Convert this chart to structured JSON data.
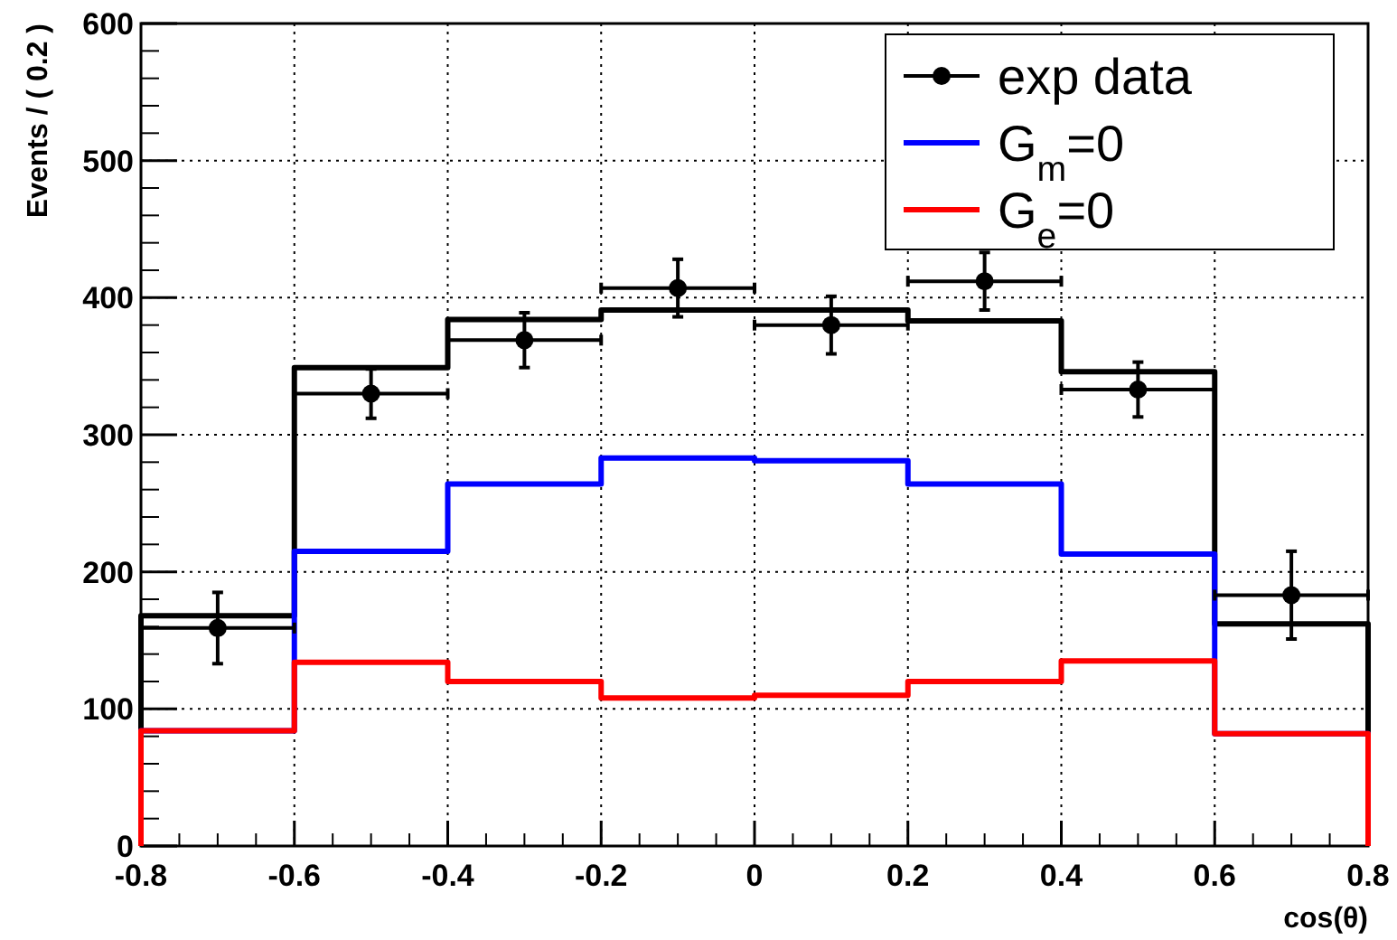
{
  "chart_data": {
    "type": "histogram",
    "xlabel": "cos(θ)",
    "ylabel": "Events / ( 0.2 )",
    "bins": [
      -0.8,
      -0.6,
      -0.4,
      -0.2,
      0,
      0.2,
      0.4,
      0.6,
      0.8
    ],
    "series": [
      {
        "name": "exp data",
        "type": "scatter",
        "color": "#000000",
        "marker": "circle",
        "x": [
          -0.7,
          -0.5,
          -0.3,
          -0.1,
          0.1,
          0.3,
          0.5,
          0.7
        ],
        "values": [
          159,
          330,
          369,
          407,
          380,
          412,
          333,
          183
        ],
        "errors": [
          26,
          18,
          20,
          21,
          21,
          21,
          20,
          32
        ],
        "xerrors": [
          0.1,
          0.1,
          0.1,
          0.1,
          0.1,
          0.1,
          0.1,
          0.1
        ]
      },
      {
        "color": "#000000",
        "values": [
          168,
          349,
          384,
          391,
          391,
          383,
          346,
          162
        ]
      },
      {
        "name": "G$_{m}$=0",
        "color": "#0000ff",
        "values": [
          84,
          215,
          264,
          283,
          281,
          264,
          213,
          82
        ]
      },
      {
        "name": "G$_{e}$=0",
        "color": "#ff0000",
        "values": [
          84,
          134,
          120,
          108,
          110,
          120,
          135,
          82
        ]
      }
    ],
    "xlim": [
      -0.8,
      0.8
    ],
    "xticks": [
      -0.8,
      -0.6,
      -0.4,
      -0.2,
      0,
      0.2,
      0.4,
      0.6,
      0.8
    ],
    "ylim": [
      0,
      600
    ],
    "yticks": [
      0,
      100,
      200,
      300,
      400,
      500,
      600
    ],
    "grid": true,
    "legend": "top right"
  }
}
